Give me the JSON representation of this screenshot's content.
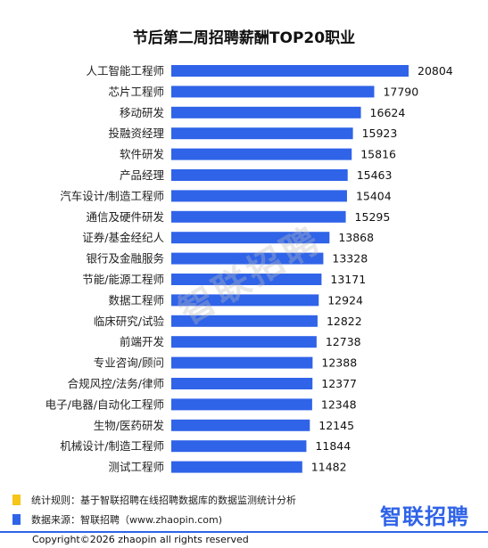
{
  "chart_data": {
    "type": "bar",
    "orientation": "horizontal",
    "title": "节后第二周招聘薪酬TOP20职业",
    "categories": [
      "人工智能工程师",
      "芯片工程师",
      "移动研发",
      "投融资经理",
      "软件研发",
      "产品经理",
      "汽车设计/制造工程师",
      "通信及硬件研发",
      "证券/基金经纪人",
      "银行及金融服务",
      "节能/能源工程师",
      "数据工程师",
      "临床研究/试验",
      "前端开发",
      "专业咨询/顾问",
      "合规风控/法务/律师",
      "电子/电器/自动化工程师",
      "生物/医药研发",
      "机械设计/制造工程师",
      "测试工程师"
    ],
    "values": [
      20804,
      17790,
      16624,
      15923,
      15816,
      15463,
      15404,
      15295,
      13868,
      13328,
      13171,
      12924,
      12822,
      12738,
      12388,
      12377,
      12348,
      12145,
      11844,
      11482
    ],
    "bar_color": "#2f63e8",
    "grid": false,
    "legend": "none"
  },
  "watermark": "智联招聘",
  "footer": {
    "rule_text": "统计规则：基于智联招聘在线招聘数据库的数据监测统计分析",
    "rule_color": "#f5c518",
    "source_text": "数据来源：智联招聘（www.zhaopin.com)",
    "source_color": "#2f63e8",
    "logo_text": "智联招聘",
    "logo_color": "#2f63e8",
    "copyright": "Copyright©2026 zhaopin all rights reserved"
  }
}
